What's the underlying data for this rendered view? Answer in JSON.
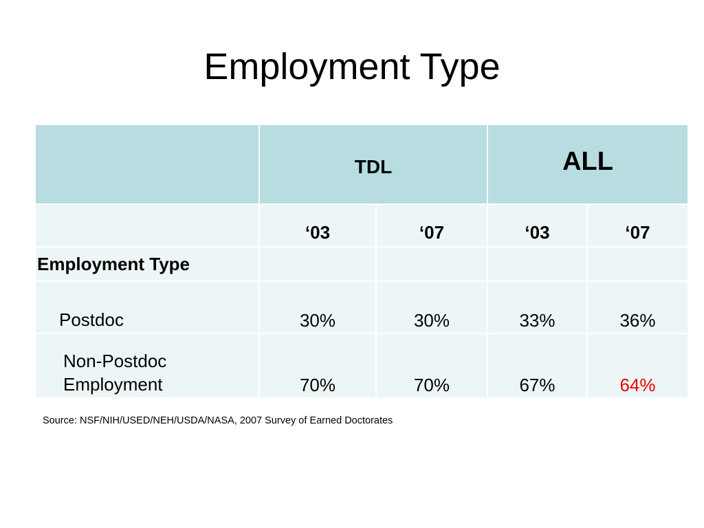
{
  "title": "Employment Type",
  "table": {
    "groups": [
      "TDL",
      "ALL"
    ],
    "years": [
      "‘03",
      "‘07",
      "‘03",
      "‘07"
    ],
    "section": "Employment Type",
    "rows": [
      {
        "label": "Postdoc",
        "values": [
          "30%",
          "30%",
          "33%",
          "36%"
        ]
      },
      {
        "label": "Non-Postdoc\nEmployment",
        "values": [
          "70%",
          "70%",
          "67%",
          "64%"
        ]
      }
    ],
    "highlight": {
      "row": 1,
      "column": 3,
      "color": "#ee0000"
    }
  },
  "source": "Source: NSF/NIH/USED/NEH/USDA/NASA, 2007 Survey of Earned Doctorates"
}
